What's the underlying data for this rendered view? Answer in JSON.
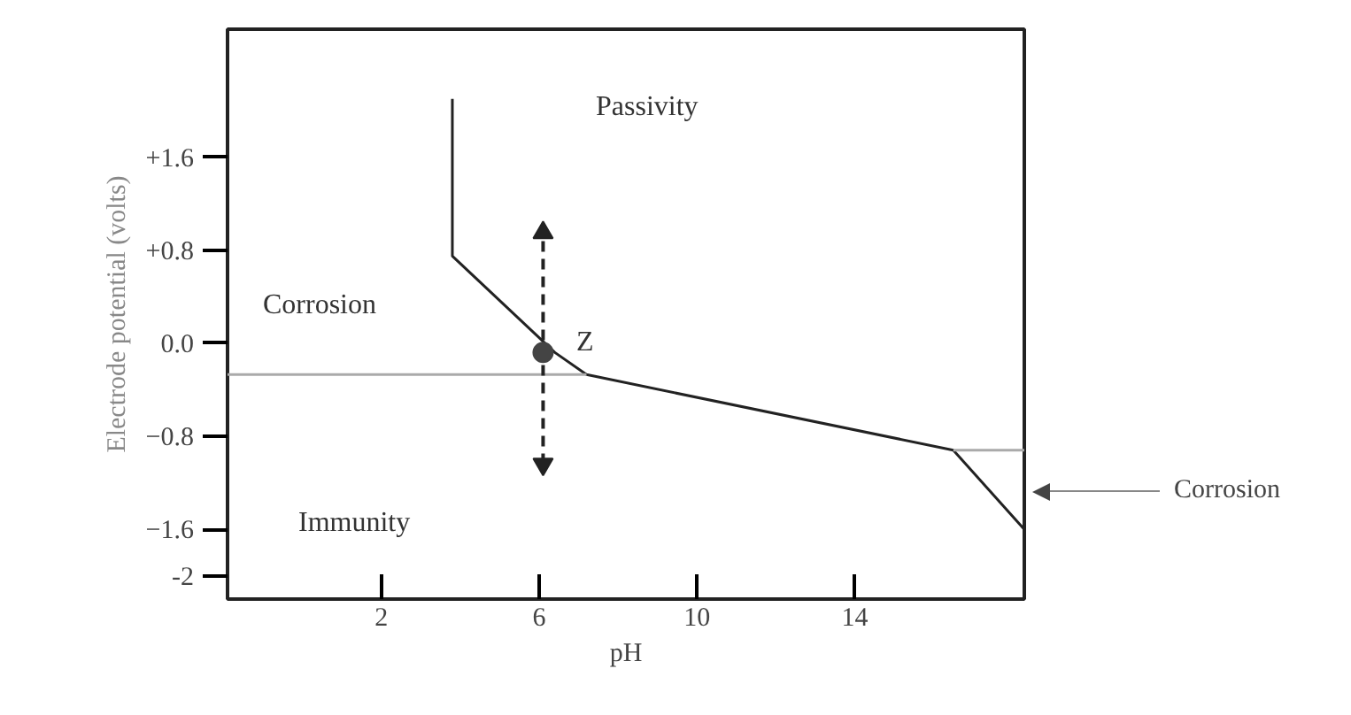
{
  "chart_data": {
    "type": "line",
    "xlabel": "pH",
    "ylabel": "Electrode potential (volts)",
    "xlim": [
      -1.9,
      18.3
    ],
    "ylim": [
      -2.2,
      2.7
    ],
    "xticks": [
      2,
      6,
      10,
      14
    ],
    "yticks": [
      {
        "value": 1.6,
        "label": "+1.6"
      },
      {
        "value": 0.8,
        "label": "+0.8"
      },
      {
        "value": 0,
        "label": "0.0"
      },
      {
        "value": -0.8,
        "label": "−0.8"
      },
      {
        "value": -1.6,
        "label": "−1.6"
      },
      {
        "value": -2,
        "label": "-2"
      }
    ],
    "grid": false,
    "marker": "none",
    "series": [
      {
        "x": [
          3.8,
          3.8,
          6.4,
          7.2,
          16.5,
          18.3
        ],
        "values": [
          2.1,
          0.75,
          -0.08,
          -0.27,
          -0.92,
          -1.6
        ],
        "color": "#222222",
        "line_style": "solid"
      },
      {
        "x": [
          -1.9,
          7.2
        ],
        "values": [
          -0.27,
          -0.27
        ],
        "color": "#aaaaaa",
        "line_style": "solid"
      },
      {
        "x": [
          16.5,
          18.3
        ],
        "values": [
          -0.92,
          -0.92
        ],
        "color": "#aaaaaa",
        "line_style": "solid"
      },
      {
        "x": [
          6.1,
          6.1
        ],
        "values": [
          -1.04,
          0.95
        ],
        "color": "#222222",
        "line_style": "dashed",
        "marker": "triangle"
      },
      {
        "type": "scatter",
        "x": [
          6.1
        ],
        "values": [
          -0.08
        ],
        "color": "#444444",
        "marker": "circle"
      }
    ],
    "annotations": [
      "Passivity",
      "Corrosion",
      "Immunity",
      "Z",
      "Corrosion"
    ]
  }
}
